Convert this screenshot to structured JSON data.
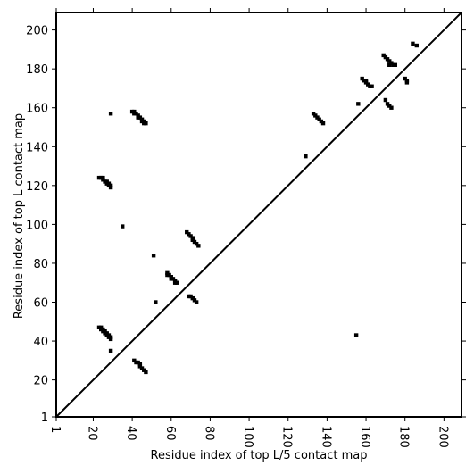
{
  "chart_data": {
    "type": "scatter",
    "x_label": "Residue index of top L/5 contact map",
    "y_label": "Residue index of top L contact map",
    "xlim": [
      1,
      209
    ],
    "ylim": [
      1,
      209
    ],
    "xticks": [
      1,
      20,
      40,
      60,
      80,
      100,
      120,
      140,
      160,
      180,
      200
    ],
    "yticks": [
      1,
      20,
      40,
      60,
      80,
      100,
      120,
      140,
      160,
      180,
      200
    ],
    "color": "#000000",
    "diagonal": true,
    "x": [
      23,
      24,
      24,
      25,
      25,
      26,
      26,
      27,
      27,
      28,
      28,
      29,
      29,
      29,
      23,
      24,
      25,
      25,
      26,
      27,
      27,
      28,
      28,
      29,
      29,
      29,
      35,
      41,
      42,
      43,
      44,
      44,
      45,
      46,
      47,
      40,
      41,
      41,
      42,
      43,
      43,
      44,
      45,
      45,
      46,
      46,
      47,
      51,
      52,
      58,
      58,
      59,
      60,
      60,
      61,
      62,
      62,
      63,
      68,
      69,
      70,
      71,
      71,
      72,
      73,
      74,
      69,
      70,
      71,
      72,
      73,
      129,
      133,
      134,
      135,
      136,
      137,
      138,
      155,
      156,
      158,
      159,
      160,
      160,
      161,
      162,
      163,
      170,
      171,
      172,
      173,
      169,
      170,
      171,
      172,
      173,
      174,
      175,
      172,
      180,
      181,
      181,
      184,
      186
    ],
    "y": [
      47,
      47,
      46,
      46,
      45,
      45,
      44,
      44,
      43,
      43,
      42,
      42,
      41,
      35,
      124,
      124,
      124,
      123,
      122,
      122,
      121,
      121,
      120,
      120,
      119,
      157,
      99,
      30,
      29,
      29,
      28,
      27,
      26,
      25,
      24,
      158,
      158,
      157,
      157,
      156,
      155,
      155,
      154,
      153,
      153,
      152,
      152,
      84,
      60,
      75,
      74,
      74,
      73,
      72,
      72,
      71,
      70,
      70,
      96,
      95,
      94,
      93,
      92,
      91,
      90,
      89,
      63,
      63,
      62,
      61,
      60,
      135,
      157,
      156,
      155,
      154,
      153,
      152,
      43,
      162,
      175,
      174,
      174,
      173,
      172,
      171,
      171,
      164,
      162,
      161,
      160,
      187,
      186,
      185,
      184,
      183,
      182,
      182,
      182,
      175,
      174,
      173,
      193,
      192
    ]
  }
}
